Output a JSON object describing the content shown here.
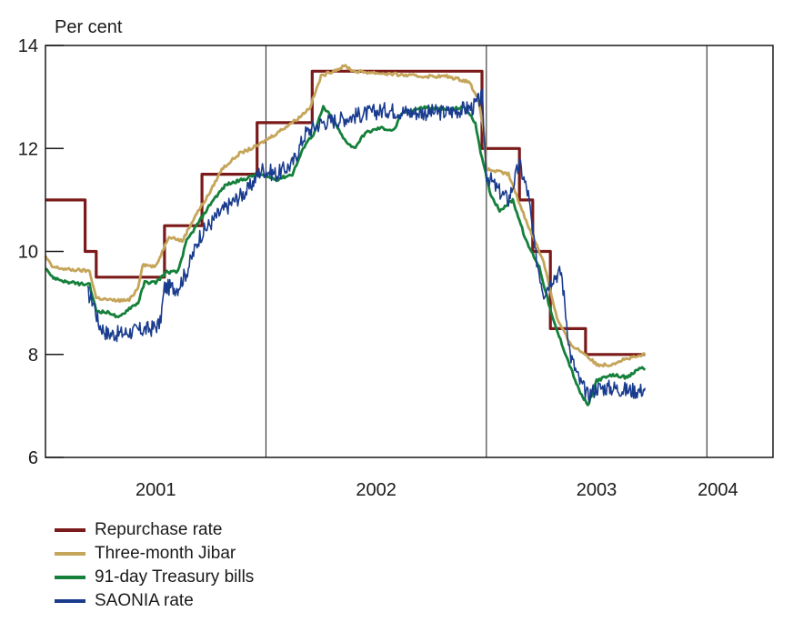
{
  "chart_data": {
    "type": "line",
    "ylabel": "Per cent",
    "ylim": [
      6,
      14
    ],
    "yticks": [
      6,
      8,
      10,
      12,
      14
    ],
    "year_labels": [
      "2001",
      "2002",
      "2003",
      "2004"
    ],
    "year_label_centers": [
      2001.5,
      2002.5,
      2003.5,
      2004.05
    ],
    "year_dividers": [
      2002.0,
      2003.0,
      2004.0
    ],
    "xlim": [
      2001.0,
      2004.3
    ],
    "grid": false,
    "legend_position": "bottom-left",
    "series": [
      {
        "name": "Repurchase rate",
        "color": "#7b1a1a",
        "step": true,
        "points": [
          [
            2001.0,
            11.0
          ],
          [
            2001.18,
            11.0
          ],
          [
            2001.18,
            10.0
          ],
          [
            2001.23,
            10.0
          ],
          [
            2001.23,
            9.5
          ],
          [
            2001.54,
            9.5
          ],
          [
            2001.54,
            10.5
          ],
          [
            2001.71,
            10.5
          ],
          [
            2001.71,
            11.5
          ],
          [
            2001.96,
            11.5
          ],
          [
            2001.96,
            12.5
          ],
          [
            2002.21,
            12.5
          ],
          [
            2002.21,
            13.5
          ],
          [
            2002.98,
            13.5
          ],
          [
            2002.98,
            12.0
          ],
          [
            2003.15,
            12.0
          ],
          [
            2003.15,
            11.0
          ],
          [
            2003.21,
            11.0
          ],
          [
            2003.21,
            10.0
          ],
          [
            2003.29,
            10.0
          ],
          [
            2003.29,
            8.5
          ],
          [
            2003.45,
            8.5
          ],
          [
            2003.45,
            8.0
          ],
          [
            2003.72,
            8.0
          ]
        ]
      },
      {
        "name": "Three-month Jibar",
        "color": "#c5a55a",
        "step": false,
        "points": [
          [
            2001.0,
            9.9
          ],
          [
            2001.03,
            9.7
          ],
          [
            2001.1,
            9.65
          ],
          [
            2001.2,
            9.62
          ],
          [
            2001.23,
            9.1
          ],
          [
            2001.3,
            9.05
          ],
          [
            2001.38,
            9.05
          ],
          [
            2001.42,
            9.3
          ],
          [
            2001.44,
            9.75
          ],
          [
            2001.5,
            9.7
          ],
          [
            2001.56,
            10.3
          ],
          [
            2001.62,
            10.2
          ],
          [
            2001.68,
            10.7
          ],
          [
            2001.74,
            11.1
          ],
          [
            2001.8,
            11.6
          ],
          [
            2001.88,
            11.9
          ],
          [
            2001.96,
            12.05
          ],
          [
            2002.05,
            12.3
          ],
          [
            2002.15,
            12.6
          ],
          [
            2002.2,
            12.8
          ],
          [
            2002.25,
            13.4
          ],
          [
            2002.3,
            13.5
          ],
          [
            2002.36,
            13.6
          ],
          [
            2002.4,
            13.5
          ],
          [
            2002.55,
            13.45
          ],
          [
            2002.7,
            13.4
          ],
          [
            2002.82,
            13.4
          ],
          [
            2002.92,
            13.3
          ],
          [
            2002.96,
            13.0
          ],
          [
            2002.99,
            12.3
          ],
          [
            2003.0,
            11.6
          ],
          [
            2003.1,
            11.5
          ],
          [
            2003.18,
            10.6
          ],
          [
            2003.26,
            9.8
          ],
          [
            2003.32,
            8.7
          ],
          [
            2003.38,
            8.2
          ],
          [
            2003.45,
            8.0
          ],
          [
            2003.5,
            7.8
          ],
          [
            2003.56,
            7.8
          ],
          [
            2003.62,
            7.9
          ],
          [
            2003.68,
            7.95
          ],
          [
            2003.72,
            8.0
          ]
        ]
      },
      {
        "name": "91-day Treasury bills",
        "color": "#14803a",
        "step": false,
        "points": [
          [
            2001.0,
            9.7
          ],
          [
            2001.03,
            9.5
          ],
          [
            2001.1,
            9.4
          ],
          [
            2001.2,
            9.35
          ],
          [
            2001.23,
            8.85
          ],
          [
            2001.3,
            8.8
          ],
          [
            2001.33,
            8.7
          ],
          [
            2001.38,
            8.9
          ],
          [
            2001.42,
            9.0
          ],
          [
            2001.45,
            9.4
          ],
          [
            2001.5,
            9.4
          ],
          [
            2001.55,
            9.6
          ],
          [
            2001.6,
            9.6
          ],
          [
            2001.64,
            10.2
          ],
          [
            2001.7,
            10.6
          ],
          [
            2001.76,
            11.0
          ],
          [
            2001.82,
            11.3
          ],
          [
            2001.9,
            11.4
          ],
          [
            2001.96,
            11.5
          ],
          [
            2002.05,
            11.4
          ],
          [
            2002.12,
            11.5
          ],
          [
            2002.18,
            12.1
          ],
          [
            2002.22,
            12.3
          ],
          [
            2002.26,
            12.8
          ],
          [
            2002.3,
            12.6
          ],
          [
            2002.35,
            12.2
          ],
          [
            2002.4,
            12.0
          ],
          [
            2002.45,
            12.3
          ],
          [
            2002.52,
            12.4
          ],
          [
            2002.58,
            12.35
          ],
          [
            2002.62,
            12.7
          ],
          [
            2002.72,
            12.8
          ],
          [
            2002.82,
            12.75
          ],
          [
            2002.9,
            12.8
          ],
          [
            2002.95,
            12.5
          ],
          [
            2002.98,
            11.8
          ],
          [
            2003.02,
            11.1
          ],
          [
            2003.06,
            10.8
          ],
          [
            2003.12,
            11.0
          ],
          [
            2003.18,
            10.2
          ],
          [
            2003.24,
            9.7
          ],
          [
            2003.3,
            8.7
          ],
          [
            2003.36,
            8.0
          ],
          [
            2003.42,
            7.3
          ],
          [
            2003.46,
            7.0
          ],
          [
            2003.5,
            7.5
          ],
          [
            2003.58,
            7.6
          ],
          [
            2003.64,
            7.55
          ],
          [
            2003.7,
            7.75
          ],
          [
            2003.72,
            7.7
          ]
        ]
      },
      {
        "name": "SAONIA rate",
        "color": "#1a3c8f",
        "step": false,
        "noisy": true,
        "points": [
          [
            2001.19,
            9.2
          ],
          [
            2001.22,
            9.0
          ],
          [
            2001.24,
            8.6
          ],
          [
            2001.28,
            8.4
          ],
          [
            2001.34,
            8.4
          ],
          [
            2001.4,
            8.45
          ],
          [
            2001.48,
            8.5
          ],
          [
            2001.52,
            8.6
          ],
          [
            2001.54,
            9.3
          ],
          [
            2001.6,
            9.3
          ],
          [
            2001.64,
            9.6
          ],
          [
            2001.7,
            10.3
          ],
          [
            2001.78,
            10.7
          ],
          [
            2001.86,
            11.0
          ],
          [
            2001.92,
            11.2
          ],
          [
            2001.98,
            11.6
          ],
          [
            2002.05,
            11.5
          ],
          [
            2002.12,
            11.7
          ],
          [
            2002.18,
            12.3
          ],
          [
            2002.25,
            12.5
          ],
          [
            2002.32,
            12.55
          ],
          [
            2002.42,
            12.65
          ],
          [
            2002.55,
            12.75
          ],
          [
            2002.65,
            12.7
          ],
          [
            2002.75,
            12.7
          ],
          [
            2002.82,
            12.7
          ],
          [
            2002.88,
            12.75
          ],
          [
            2002.94,
            12.8
          ],
          [
            2002.98,
            13.0
          ],
          [
            2003.0,
            11.5
          ],
          [
            2003.05,
            11.2
          ],
          [
            2003.1,
            11.0
          ],
          [
            2003.15,
            11.7
          ],
          [
            2003.19,
            11.1
          ],
          [
            2003.22,
            10.0
          ],
          [
            2003.26,
            9.2
          ],
          [
            2003.3,
            9.5
          ],
          [
            2003.34,
            9.6
          ],
          [
            2003.38,
            8.0
          ],
          [
            2003.42,
            7.5
          ],
          [
            2003.46,
            7.2
          ],
          [
            2003.5,
            7.35
          ],
          [
            2003.58,
            7.35
          ],
          [
            2003.64,
            7.3
          ],
          [
            2003.7,
            7.3
          ],
          [
            2003.72,
            7.35
          ]
        ]
      }
    ]
  },
  "legend": {
    "items": [
      {
        "label": "Repurchase rate",
        "color": "#7b1a1a"
      },
      {
        "label": "Three-month Jibar",
        "color": "#c5a55a"
      },
      {
        "label": "91-day Treasury bills",
        "color": "#14803a"
      },
      {
        "label": "SAONIA rate",
        "color": "#1a3c8f"
      }
    ]
  }
}
